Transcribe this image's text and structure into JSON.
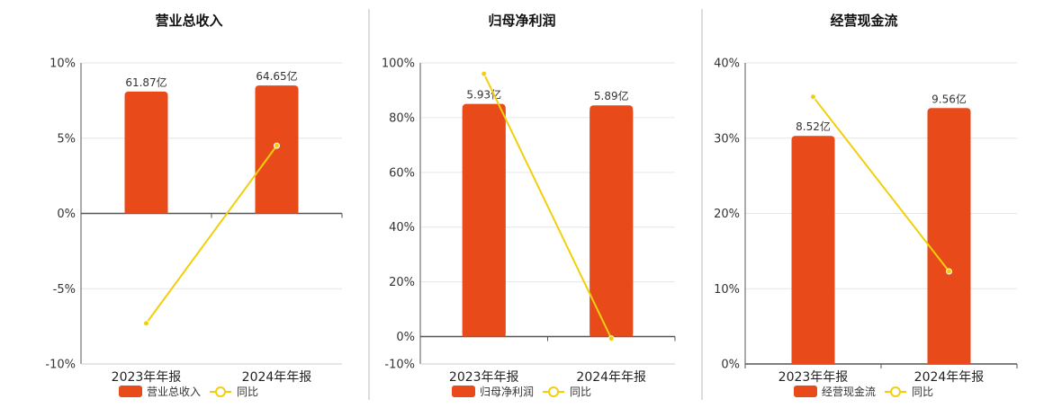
{
  "colors": {
    "bar": "#E84A1A",
    "line": "#F2CF0C",
    "divider": "#BBBBBB",
    "grid": "#E6E6E6",
    "axis": "#555555"
  },
  "chart_data": [
    {
      "type": "bar",
      "title": "营业总收入",
      "categories": [
        "2023年年报",
        "2024年年报"
      ],
      "ylim": [
        -10,
        10
      ],
      "yticks": [
        10,
        5,
        0,
        -5,
        -10
      ],
      "tick_suffix": "%",
      "series": [
        {
          "name": "营业总收入",
          "kind": "bar",
          "values": [
            8.1,
            8.5
          ],
          "labels": [
            "61.87亿",
            "64.65亿"
          ]
        },
        {
          "name": "同比",
          "kind": "line",
          "values": [
            -7.3,
            4.5
          ]
        }
      ],
      "grid": true,
      "legend": "bottom-center"
    },
    {
      "type": "bar",
      "title": "归母净利润",
      "categories": [
        "2023年年报",
        "2024年年报"
      ],
      "ylim": [
        -10,
        100
      ],
      "yticks": [
        100,
        80,
        60,
        40,
        20,
        0,
        -10
      ],
      "tick_suffix": "%",
      "series": [
        {
          "name": "归母净利润",
          "kind": "bar",
          "values": [
            85,
            84.5
          ],
          "labels": [
            "5.93亿",
            "5.89亿"
          ]
        },
        {
          "name": "同比",
          "kind": "line",
          "values": [
            96,
            -0.7
          ]
        }
      ],
      "grid": true,
      "legend": "bottom-center"
    },
    {
      "type": "bar",
      "title": "经营现金流",
      "categories": [
        "2023年年报",
        "2024年年报"
      ],
      "ylim": [
        0,
        40
      ],
      "yticks": [
        40,
        30,
        20,
        10,
        0
      ],
      "tick_suffix": "%",
      "series": [
        {
          "name": "经营现金流",
          "kind": "bar",
          "values": [
            30.3,
            34
          ],
          "labels": [
            "8.52亿",
            "9.56亿"
          ]
        },
        {
          "name": "同比",
          "kind": "line",
          "values": [
            35.5,
            12.3
          ]
        }
      ],
      "grid": true,
      "legend": "bottom-center"
    }
  ]
}
